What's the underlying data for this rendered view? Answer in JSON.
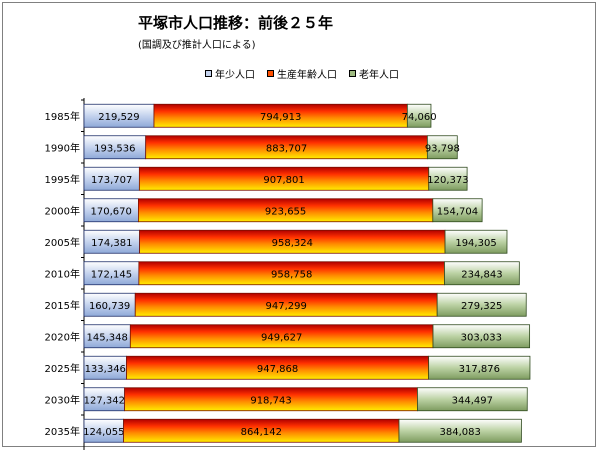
{
  "chart_data": {
    "type": "bar",
    "orientation": "horizontal",
    "stacked": true,
    "title": "平塚市人口推移：前後２５年",
    "subtitle": "(国調及び推計人口による)",
    "categories": [
      "1985年",
      "1990年",
      "1995年",
      "2000年",
      "2005年",
      "2010年",
      "2015年",
      "2020年",
      "2025年",
      "2030年",
      "2035年"
    ],
    "series": [
      {
        "name": "年少人口",
        "values": [
          219529,
          193536,
          173707,
          170670,
          174381,
          172145,
          160739,
          145348,
          133346,
          127342,
          124055
        ],
        "labels": [
          "219,529",
          "193,536",
          "173,707",
          "170,670",
          "174,381",
          "172,145",
          "160,739",
          "145,348",
          "133,346",
          "127,342",
          "124,055"
        ],
        "color": "#c5d3ee"
      },
      {
        "name": "生産年齢人口",
        "values": [
          794913,
          883707,
          907801,
          923655,
          958324,
          958758,
          947299,
          949627,
          947868,
          918743,
          864142
        ],
        "labels": [
          "794,913",
          "883,707",
          "907,801",
          "923,655",
          "958,324",
          "958,758",
          "947,299",
          "949,627",
          "947,868",
          "918,743",
          "864,142"
        ],
        "color": "#ff5000"
      },
      {
        "name": "老年人口",
        "values": [
          74060,
          93798,
          120373,
          154704,
          194305,
          234843,
          279325,
          303033,
          317876,
          344497,
          384083
        ],
        "labels": [
          "74,060",
          "93,798",
          "120,373",
          "154,704",
          "194,305",
          "234,843",
          "279,325",
          "303,033",
          "317,876",
          "344,497",
          "384,083"
        ],
        "color": "#9fbc82"
      }
    ],
    "xlim": [
      0,
      1600000
    ],
    "legend_position": "top",
    "grid": false
  }
}
